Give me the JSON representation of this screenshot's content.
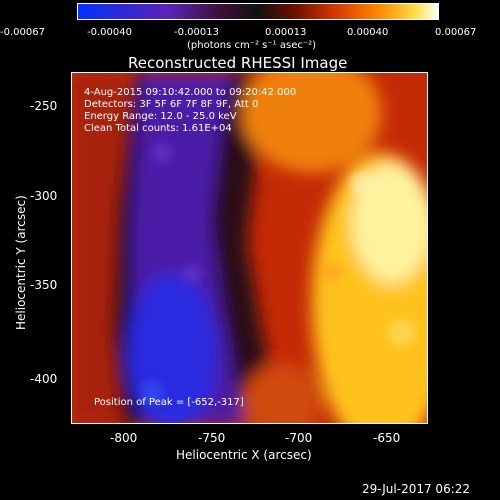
{
  "colorbar": {
    "ticks": [
      "-0.00067",
      "-0.00040",
      "-0.00013",
      "0.00013",
      "0.00040",
      "0.00067"
    ],
    "units": "(photons cm⁻² s⁻¹ asec⁻²)"
  },
  "title": "Reconstructed RHESSI Image",
  "info": {
    "time_range": "4-Aug-2015 09:10:42.000 to 09:20:42.000",
    "detectors": "Detectors: 3F 5F 6F 7F 8F 9F, Att 0",
    "energy": "Energy Range: 12.0 - 25.0 keV",
    "clean": "Clean     Total counts: 1.61E+04"
  },
  "peak": "Position of Peak = [-652,-317]",
  "axes": {
    "xlabel": "Heliocentric X (arcsec)",
    "ylabel": "Heliocentric Y (arcsec)",
    "xticks": [
      "-800",
      "-750",
      "-700",
      "-650"
    ],
    "yticks": [
      "-250",
      "-300",
      "-350",
      "-400"
    ]
  },
  "footer": "29-Jul-2017 06:22"
}
